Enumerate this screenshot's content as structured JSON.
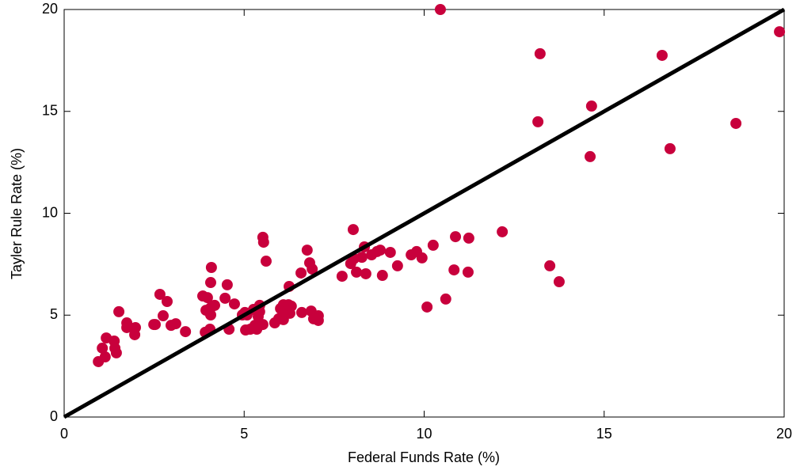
{
  "chart_data": {
    "type": "scatter",
    "xlabel": "Federal Funds Rate (%)",
    "ylabel": "Tayler Rule Rate (%)",
    "color": "#c8003c",
    "identity_line": true,
    "xlim": [
      0,
      20
    ],
    "ylim": [
      0,
      20
    ],
    "xticks": [
      0,
      5,
      10,
      15,
      20
    ],
    "yticks": [
      0,
      5,
      10,
      15,
      20
    ],
    "x": [
      0.95,
      1.06,
      1.17,
      1.14,
      1.39,
      1.41,
      1.45,
      1.52,
      1.74,
      1.74,
      1.98,
      1.96,
      2.49,
      2.53,
      2.66,
      2.75,
      2.86,
      2.97,
      3.1,
      3.37,
      3.85,
      3.98,
      3.94,
      3.92,
      4.05,
      4.07,
      4.09,
      4.07,
      4.07,
      4.18,
      4.47,
      4.53,
      4.58,
      4.73,
      4.95,
      5.02,
      5.08,
      5.04,
      5.17,
      5.26,
      5.3,
      5.35,
      5.39,
      5.43,
      5.43,
      5.52,
      5.52,
      5.54,
      5.61,
      5.85,
      5.96,
      6.09,
      6.01,
      6.09,
      6.14,
      6.25,
      6.23,
      6.27,
      6.31,
      6.58,
      6.6,
      6.75,
      6.82,
      6.89,
      6.86,
      6.93,
      7.06,
      7.06,
      7.72,
      7.96,
      8.05,
      8.03,
      8.12,
      8.27,
      8.34,
      8.38,
      8.54,
      8.69,
      8.78,
      8.84,
      9.06,
      9.26,
      9.64,
      9.79,
      9.94,
      10.08,
      10.25,
      10.45,
      10.6,
      10.83,
      10.87,
      11.22,
      11.24,
      12.17,
      13.16,
      13.22,
      13.49,
      13.75,
      14.61,
      14.65,
      16.61,
      16.83,
      18.66,
      19.87
    ],
    "values": [
      2.72,
      3.38,
      3.88,
      2.95,
      3.73,
      3.38,
      3.15,
      5.17,
      4.62,
      4.39,
      4.39,
      4.04,
      4.54,
      4.54,
      6.02,
      4.97,
      5.67,
      4.5,
      4.58,
      4.19,
      5.94,
      5.86,
      5.24,
      4.16,
      4.31,
      6.6,
      7.34,
      5.01,
      5.36,
      5.48,
      5.83,
      6.49,
      4.31,
      5.55,
      5.01,
      5.13,
      5.01,
      4.27,
      4.31,
      5.28,
      4.5,
      4.31,
      4.93,
      5.17,
      5.48,
      4.54,
      8.82,
      8.58,
      7.65,
      4.62,
      4.82,
      4.78,
      5.32,
      5.51,
      5.17,
      6.41,
      5.51,
      5.09,
      5.44,
      7.07,
      5.13,
      8.19,
      7.57,
      7.26,
      5.2,
      4.82,
      4.74,
      4.97,
      6.91,
      7.53,
      7.77,
      9.2,
      7.11,
      7.84,
      8.35,
      7.03,
      7.96,
      8.12,
      8.19,
      6.95,
      8.08,
      7.42,
      7.96,
      8.12,
      7.81,
      5.4,
      8.43,
      20.0,
      5.79,
      7.22,
      8.85,
      7.11,
      8.78,
      9.09,
      14.49,
      17.83,
      7.42,
      6.64,
      12.78,
      15.26,
      17.75,
      13.17,
      14.41,
      18.91
    ]
  }
}
